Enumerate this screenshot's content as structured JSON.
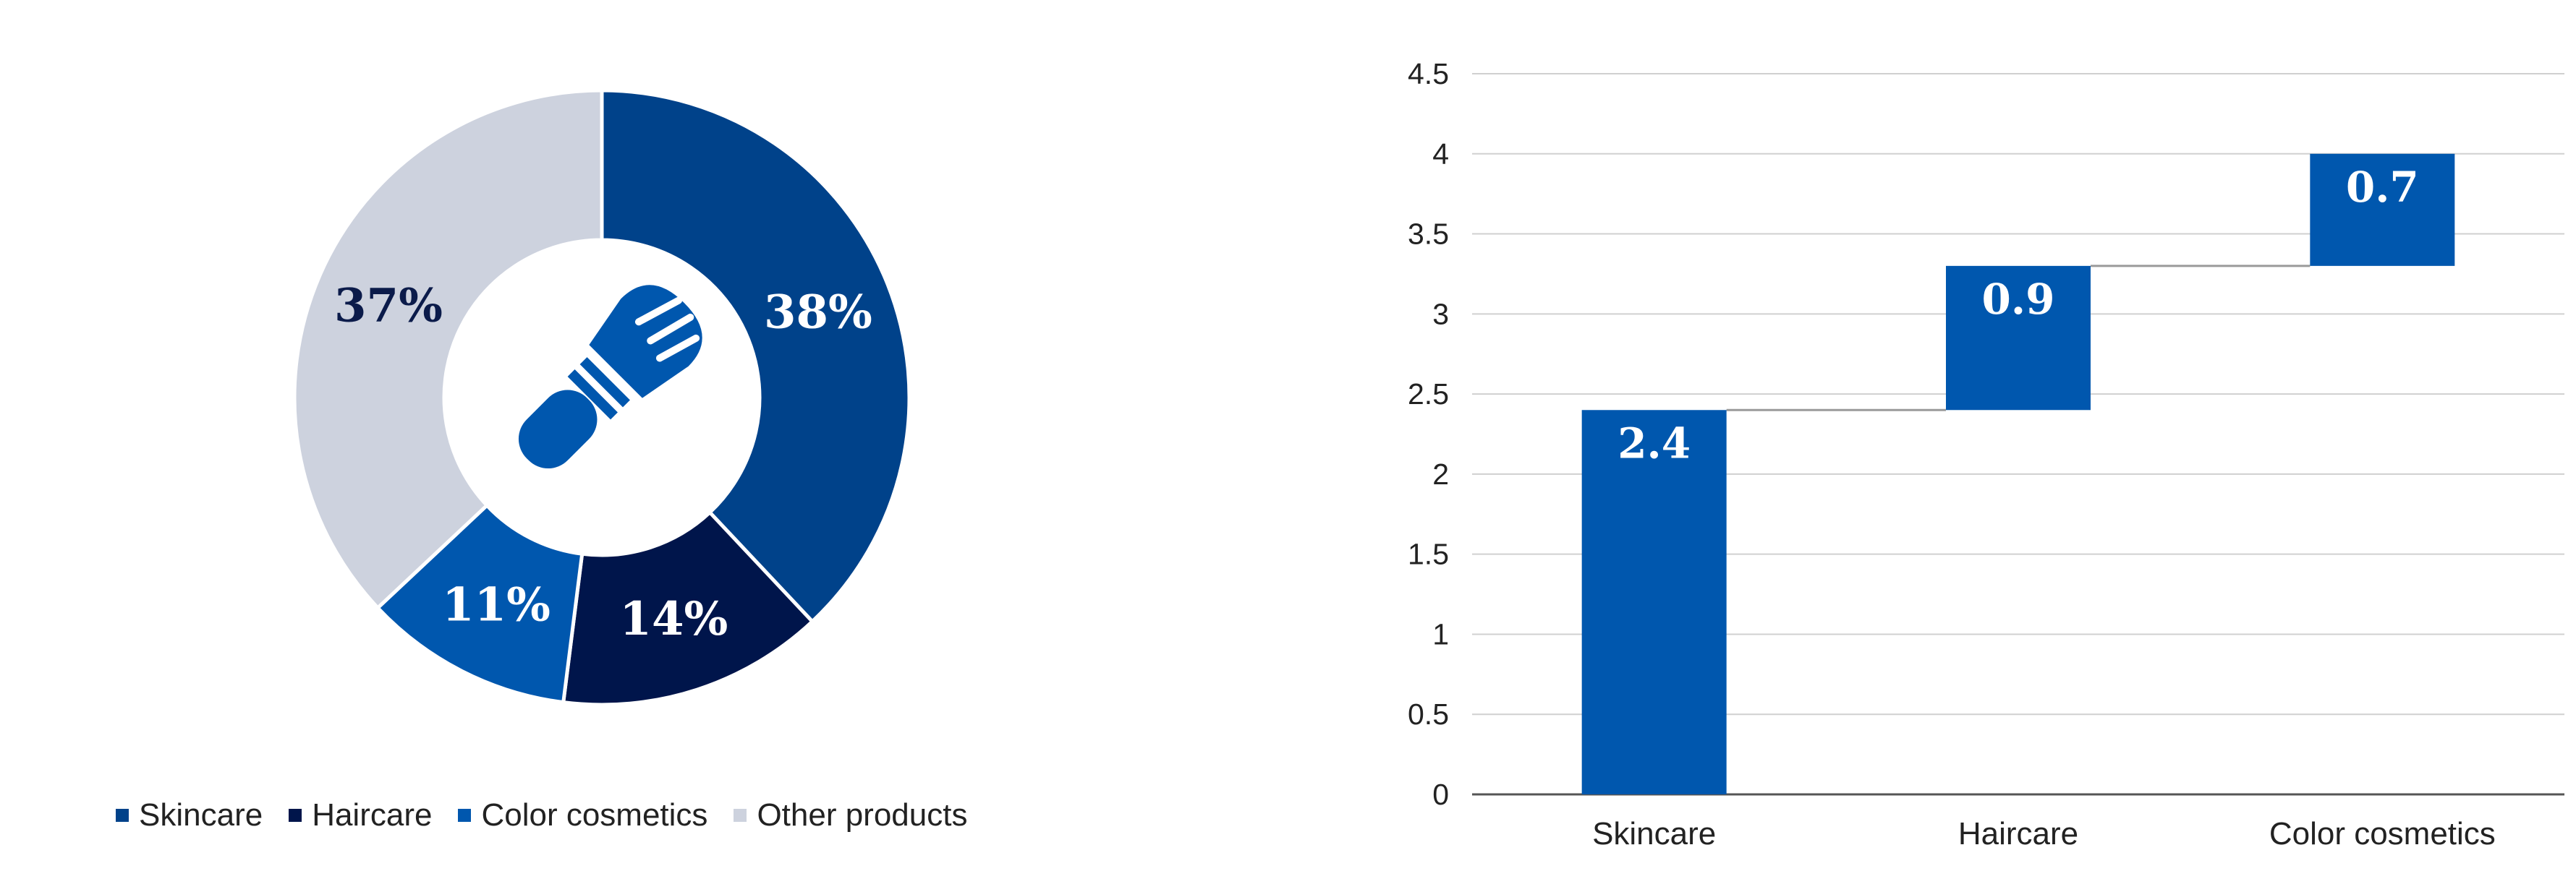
{
  "colors": {
    "skincare": "#00428A",
    "haircare": "#00154B",
    "color_cosmetics": "#0057AE",
    "other_products": "#CDD2DE",
    "brush_icon": "#0057AE",
    "grid": "#D0D0D0",
    "axis": "#555555",
    "connector": "#9A9A9A"
  },
  "chart_data": [
    {
      "type": "pie",
      "donut": true,
      "center_icon": "makeup-brush-icon",
      "slices": [
        {
          "name": "Skincare",
          "value": 38,
          "label": "38%",
          "color_key": "skincare",
          "label_color": "#FFFFFF"
        },
        {
          "name": "Haircare",
          "value": 14,
          "label": "14%",
          "color_key": "haircare",
          "label_color": "#FFFFFF"
        },
        {
          "name": "Color cosmetics",
          "value": 11,
          "label": "11%",
          "color_key": "color_cosmetics",
          "label_color": "#FFFFFF"
        },
        {
          "name": "Other products",
          "value": 37,
          "label": "37%",
          "color_key": "other_products",
          "label_color": "#0B1B4A"
        }
      ],
      "legend": {
        "position": "bottom",
        "items": [
          "Skincare",
          "Haircare",
          "Color cosmetics",
          "Other products"
        ]
      }
    },
    {
      "type": "bar",
      "subtype": "waterfall",
      "categories": [
        "Skincare",
        "Haircare",
        "Color cosmetics"
      ],
      "values": [
        2.4,
        0.9,
        0.7
      ],
      "data_labels": [
        "2.4",
        "0.9",
        "0.7"
      ],
      "ylim": [
        0,
        4.5
      ],
      "yticks": [
        "0",
        "0.5",
        "1",
        "1.5",
        "2",
        "2.5",
        "3",
        "3.5",
        "4",
        "4.5"
      ],
      "grid": true,
      "bar_color_key": "color_cosmetics"
    }
  ]
}
